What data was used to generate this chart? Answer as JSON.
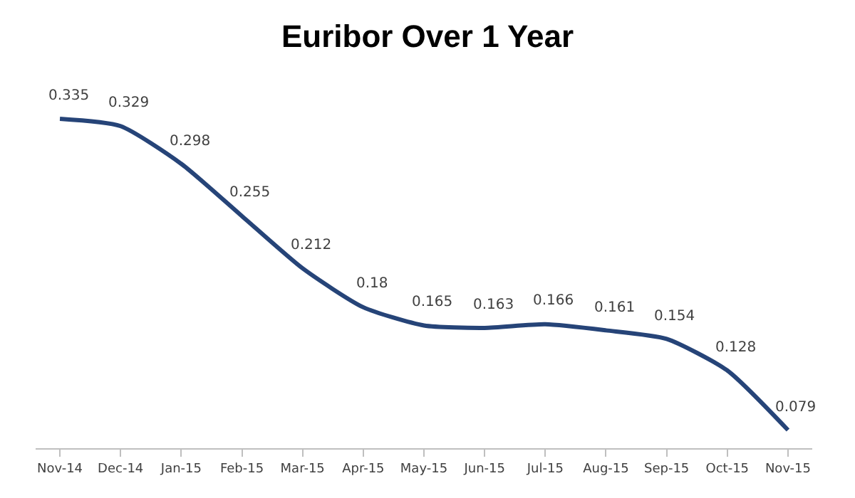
{
  "chart_data": {
    "type": "line",
    "title": "Euribor Over 1 Year",
    "categories": [
      "Nov-14",
      "Dec-14",
      "Jan-15",
      "Feb-15",
      "Mar-15",
      "Apr-15",
      "May-15",
      "Jun-15",
      "Jul-15",
      "Aug-15",
      "Sep-15",
      "Oct-15",
      "Nov-15"
    ],
    "series": [
      {
        "color": "#264478",
        "values": [
          0.335,
          0.329,
          0.298,
          0.255,
          0.212,
          0.18,
          0.165,
          0.163,
          0.166,
          0.161,
          0.154,
          0.128,
          0.079
        ]
      }
    ],
    "data_labels": true,
    "marker": "none",
    "line_style": "solid",
    "grid": false
  }
}
